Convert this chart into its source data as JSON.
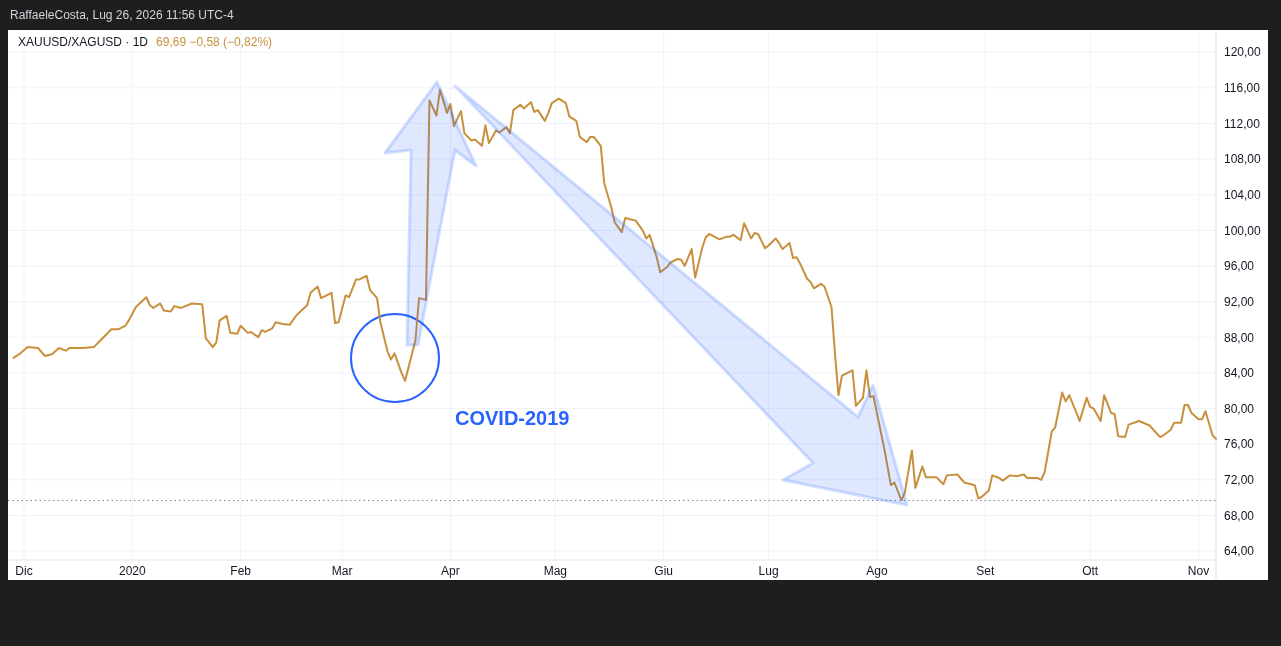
{
  "chart_data": {
    "type": "line",
    "title": "XAUUSD/XAGUSD · 1D",
    "annotations": [
      "RaffaeleCosta, Lug 26, 2026 11:56 UTC-4",
      "69,69 −0,58 (−0,82%)",
      "COVID-2019"
    ],
    "x": [
      "2019-11-28",
      "2019-11-30",
      "2019-12-02",
      "2019-12-05",
      "2019-12-07",
      "2019-12-09",
      "2019-12-11",
      "2019-12-13",
      "2019-12-14",
      "2019-12-18",
      "2019-12-21",
      "2019-12-23",
      "2019-12-26",
      "2019-12-28",
      "2019-12-30",
      "2019-12-31",
      "2020-01-02",
      "2020-01-05",
      "2020-01-06",
      "2020-01-07",
      "2020-01-09",
      "2020-01-10",
      "2020-01-12",
      "2020-01-13",
      "2020-01-15",
      "2020-01-18",
      "2020-01-21",
      "2020-01-22",
      "2020-01-24",
      "2020-01-25",
      "2020-01-26",
      "2020-01-28",
      "2020-01-29",
      "2020-01-31",
      "2020-02-01",
      "2020-02-03",
      "2020-02-04",
      "2020-02-06",
      "2020-02-07",
      "2020-02-08",
      "2020-02-10",
      "2020-02-11",
      "2020-02-13",
      "2020-02-15",
      "2020-02-17",
      "2020-02-20",
      "2020-02-21",
      "2020-02-23",
      "2020-02-24",
      "2020-02-27",
      "2020-02-28",
      "2020-02-29",
      "2020-03-02",
      "2020-03-03",
      "2020-03-05",
      "2020-03-06",
      "2020-03-08",
      "2020-03-09",
      "2020-03-11",
      "2020-03-12",
      "2020-03-14",
      "2020-03-15",
      "2020-03-16",
      "2020-03-18",
      "2020-03-19",
      "2020-03-20",
      "2020-03-22",
      "2020-03-23",
      "2020-03-25",
      "2020-03-26",
      "2020-03-28",
      "2020-03-29",
      "2020-03-31",
      "2020-04-01",
      "2020-04-02",
      "2020-04-04",
      "2020-04-05",
      "2020-04-07",
      "2020-04-08",
      "2020-04-10",
      "2020-04-11",
      "2020-04-12",
      "2020-04-14",
      "2020-04-15",
      "2020-04-17",
      "2020-04-18",
      "2020-04-19",
      "2020-04-21",
      "2020-04-22",
      "2020-04-24",
      "2020-04-25",
      "2020-04-26",
      "2020-04-28",
      "2020-04-29",
      "2020-04-30",
      "2020-05-02",
      "2020-05-04",
      "2020-05-05",
      "2020-05-07",
      "2020-05-08",
      "2020-05-10",
      "2020-05-11",
      "2020-05-12",
      "2020-05-14",
      "2020-05-15",
      "2020-05-17",
      "2020-05-18",
      "2020-05-20",
      "2020-05-21",
      "2020-05-24",
      "2020-05-26",
      "2020-05-27",
      "2020-05-28",
      "2020-05-30",
      "2020-05-31",
      "2020-06-02",
      "2020-06-03",
      "2020-06-05",
      "2020-06-06",
      "2020-06-07",
      "2020-06-09",
      "2020-06-10",
      "2020-06-12",
      "2020-06-13",
      "2020-06-14",
      "2020-06-16",
      "2020-06-17",
      "2020-06-19",
      "2020-06-20",
      "2020-06-21",
      "2020-06-23",
      "2020-06-24",
      "2020-06-26",
      "2020-06-27",
      "2020-06-28",
      "2020-06-30",
      "2020-07-01",
      "2020-07-03",
      "2020-07-04",
      "2020-07-05",
      "2020-07-07",
      "2020-07-08",
      "2020-07-09",
      "2020-07-10",
      "2020-07-12",
      "2020-07-13",
      "2020-07-14",
      "2020-07-16",
      "2020-07-17",
      "2020-07-19",
      "2020-07-20",
      "2020-07-21",
      "2020-07-22",
      "2020-07-25",
      "2020-07-26",
      "2020-07-28",
      "2020-07-29",
      "2020-07-30",
      "2020-07-31",
      "2020-08-02",
      "2020-08-03",
      "2020-08-05",
      "2020-08-06",
      "2020-08-08",
      "2020-08-09",
      "2020-08-11",
      "2020-08-12",
      "2020-08-14",
      "2020-08-15",
      "2020-08-18",
      "2020-08-20",
      "2020-08-21",
      "2020-08-24",
      "2020-08-26",
      "2020-08-29",
      "2020-08-30",
      "2020-08-31",
      "2020-09-02",
      "2020-09-03",
      "2020-09-05",
      "2020-09-06",
      "2020-09-08",
      "2020-09-10",
      "2020-09-12",
      "2020-09-13",
      "2020-09-16",
      "2020-09-17",
      "2020-09-18",
      "2020-09-20",
      "2020-09-21",
      "2020-09-23",
      "2020-09-24",
      "2020-09-25",
      "2020-09-27",
      "2020-09-28",
      "2020-09-30",
      "2020-10-01",
      "2020-10-02",
      "2020-10-04",
      "2020-10-05",
      "2020-10-07",
      "2020-10-08",
      "2020-10-09",
      "2020-10-11",
      "2020-10-12",
      "2020-10-15",
      "2020-10-18",
      "2020-10-21",
      "2020-10-22",
      "2020-10-24",
      "2020-10-25",
      "2020-10-27",
      "2020-10-28",
      "2020-10-29",
      "2020-10-30",
      "2020-11-01",
      "2020-11-02",
      "2020-11-03",
      "2020-11-05",
      "2020-11-06"
    ],
    "series": [
      {
        "color": "#c8903c",
        "values": [
          85.7,
          86.2,
          86.9,
          86.8,
          85.9,
          86.1,
          86.8,
          86.5,
          86.8,
          86.8,
          86.9,
          87.7,
          88.9,
          88.9,
          89.3,
          89.9,
          91.4,
          92.5,
          91.6,
          91.3,
          91.8,
          91.0,
          90.9,
          91.5,
          91.3,
          91.8,
          91.7,
          87.9,
          86.9,
          87.4,
          89.9,
          90.4,
          88.5,
          88.4,
          89.3,
          88.5,
          88.6,
          88.0,
          88.8,
          88.6,
          89.0,
          89.7,
          89.5,
          89.4,
          90.5,
          91.6,
          93.0,
          93.7,
          92.4,
          93.0,
          89.6,
          89.7,
          92.7,
          92.5,
          94.5,
          94.5,
          94.9,
          93.3,
          92.4,
          89.6,
          86.4,
          85.5,
          86.2,
          84.0,
          83.1,
          84.6,
          87.7,
          92.4,
          92.2,
          114.6,
          112.9,
          115.8,
          113.2,
          114.2,
          111.7,
          113.4,
          110.9,
          110.1,
          110.2,
          109.5,
          111.8,
          109.8,
          111.2,
          111.0,
          111.6,
          110.9,
          113.5,
          114.1,
          113.7,
          114.4,
          113.3,
          113.5,
          112.3,
          113.2,
          114.3,
          114.8,
          114.3,
          112.8,
          112.3,
          110.5,
          109.9,
          110.5,
          110.5,
          109.5,
          105.3,
          102.6,
          100.9,
          99.8,
          101.4,
          101.1,
          100.0,
          99.1,
          99.5,
          97.0,
          95.3,
          95.9,
          96.4,
          96.8,
          96.7,
          96.0,
          97.9,
          94.7,
          98.0,
          99.2,
          99.6,
          99.2,
          99.0,
          99.3,
          99.3,
          99.5,
          98.9,
          100.8,
          99.1,
          99.7,
          99.6,
          98.0,
          98.3,
          99.1,
          98.6,
          97.9,
          98.6,
          96.9,
          97.0,
          96.3,
          94.6,
          94.2,
          93.5,
          94.0,
          93.7,
          91.4,
          86.2,
          81.5,
          83.7,
          84.3,
          80.3,
          81.2,
          84.3,
          81.3,
          81.4,
          77.6,
          75.7,
          71.4,
          71.7,
          69.7,
          70.6,
          75.3,
          71.1,
          73.5,
          72.3,
          72.3,
          71.5,
          72.5,
          72.6,
          71.7,
          71.4,
          69.9,
          70.1,
          70.8,
          72.5,
          72.2,
          71.9,
          72.5,
          72.4,
          72.6,
          72.2,
          72.2,
          72.0,
          72.9,
          77.4,
          77.9,
          81.8,
          80.8,
          81.5,
          79.6,
          78.6,
          81.2,
          80.2,
          80.0,
          78.6,
          81.5,
          79.5,
          79.4,
          76.9,
          76.8,
          78.2,
          78.6,
          78.1,
          76.8,
          77.0,
          77.6,
          78.4,
          78.4,
          80.4,
          80.4,
          79.5,
          78.8,
          78.8,
          79.7,
          77.0,
          76.6
        ]
      }
    ],
    "xlim": [
      "2019-11-27",
      "2020-11-06"
    ],
    "xticks": [
      {
        "value": "2019-12-01",
        "label": "Dic"
      },
      {
        "value": "2020-01-01",
        "label": "2020"
      },
      {
        "value": "2020-02-01",
        "label": "Feb"
      },
      {
        "value": "2020-03-01",
        "label": "Mar"
      },
      {
        "value": "2020-04-01",
        "label": "Apr"
      },
      {
        "value": "2020-05-01",
        "label": "Mag"
      },
      {
        "value": "2020-06-01",
        "label": "Giu"
      },
      {
        "value": "2020-07-01",
        "label": "Lug"
      },
      {
        "value": "2020-08-01",
        "label": "Ago"
      },
      {
        "value": "2020-09-01",
        "label": "Set"
      },
      {
        "value": "2020-10-01",
        "label": "Ott"
      },
      {
        "value": "2020-11-01",
        "label": "Nov"
      }
    ],
    "ylim": [
      63,
      122.5
    ],
    "yticks": [
      {
        "value": 64,
        "label": "64,00"
      },
      {
        "value": 68,
        "label": "68,00"
      },
      {
        "value": 72,
        "label": "72,00"
      },
      {
        "value": 76,
        "label": "76,00"
      },
      {
        "value": 80,
        "label": "80,00"
      },
      {
        "value": 84,
        "label": "84,00"
      },
      {
        "value": 88,
        "label": "88,00"
      },
      {
        "value": 92,
        "label": "92,00"
      },
      {
        "value": 96,
        "label": "96,00"
      },
      {
        "value": 100,
        "label": "100,00"
      },
      {
        "value": 104,
        "label": "104,00"
      },
      {
        "value": 108,
        "label": "108,00"
      },
      {
        "value": 112,
        "label": "112,00"
      },
      {
        "value": 116,
        "label": "116,00"
      },
      {
        "value": 120,
        "label": "120,00"
      }
    ],
    "ref_lines": [
      {
        "axis": "y",
        "value": 69.69,
        "color": "#787b86",
        "line_style": "dotted"
      }
    ],
    "grid": true,
    "marker": "none",
    "line_style": "solid"
  }
}
